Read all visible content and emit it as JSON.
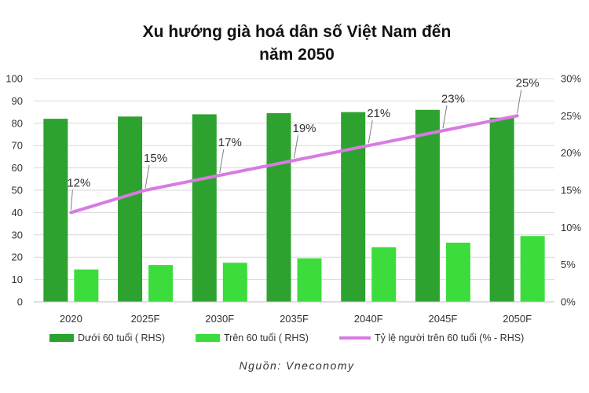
{
  "chart_data": {
    "type": "bar+line",
    "title_lines": [
      "Xu hướng già hoá dân số Việt Nam đến",
      "năm 2050"
    ],
    "categories": [
      "2020",
      "2025F",
      "2030F",
      "2035F",
      "2040F",
      "2045F",
      "2050F"
    ],
    "series": [
      {
        "name": "Dưới 60 tuổi ( RHS)",
        "type": "bar",
        "axis": "left",
        "color": "#2ea22e",
        "values": [
          82,
          83,
          84,
          84.5,
          85,
          86,
          82.5
        ]
      },
      {
        "name": "Trên 60 tuổi ( RHS)",
        "type": "bar",
        "axis": "left",
        "color": "#3ddc3d",
        "values": [
          14.5,
          16.5,
          17.5,
          19.5,
          24.5,
          26.5,
          29.5
        ]
      },
      {
        "name": "Tỷ lệ người trên 60 tuổi (% - RHS)",
        "type": "line",
        "axis": "right",
        "color": "#d77be3",
        "values": [
          12,
          15,
          17,
          19,
          21,
          23,
          25
        ],
        "labels": [
          "12%",
          "15%",
          "17%",
          "19%",
          "21%",
          "23%",
          "25%"
        ]
      }
    ],
    "y_left": {
      "min": 0,
      "max": 100,
      "ticks": [
        "0",
        "10",
        "20",
        "30",
        "40",
        "50",
        "60",
        "70",
        "80",
        "90",
        "100"
      ]
    },
    "y_right": {
      "min": 0,
      "max": 30,
      "ticks": [
        "0%",
        "5%",
        "10%",
        "15%",
        "20%",
        "25%",
        "30%"
      ]
    },
    "grid": "horizontal",
    "legend_position": "bottom",
    "source": "Nguồn: Vneconomy"
  }
}
